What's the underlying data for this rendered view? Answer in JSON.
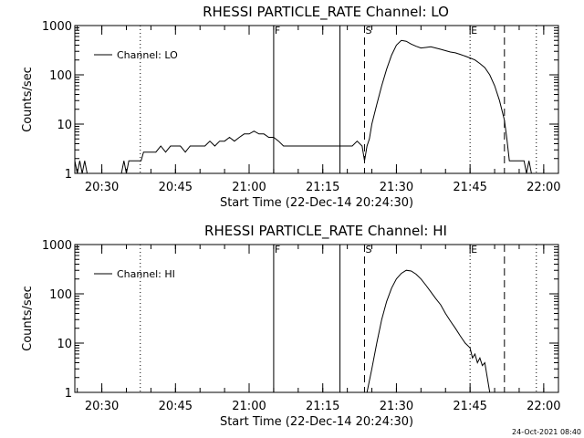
{
  "chart_data": [
    {
      "type": "line",
      "title": "RHESSI PARTICLE_RATE Channel: LO",
      "xlabel": "Start Time (22-Dec-14 20:24:30)",
      "ylabel": "Counts/sec",
      "yscale": "log",
      "ylim": [
        1,
        1000
      ],
      "xlim": [
        "20:24:30",
        "22:03:00"
      ],
      "x_ticks": [
        "20:30",
        "20:45",
        "21:00",
        "21:15",
        "21:30",
        "21:45",
        "22:00"
      ],
      "y_ticks": [
        "1",
        "10",
        "100",
        "1000"
      ],
      "legend": {
        "position": "top-left",
        "label": "Channel: LO"
      },
      "markers": [
        {
          "time": "20:37:50",
          "style": "dotted",
          "label": ""
        },
        {
          "time": "21:05:00",
          "style": "solid",
          "label": "F"
        },
        {
          "time": "21:18:30",
          "style": "solid",
          "label": ""
        },
        {
          "time": "21:23:30",
          "style": "dashed",
          "label": "S"
        },
        {
          "time": "21:45:00",
          "style": "dotted",
          "label": "E"
        },
        {
          "time": "21:52:00",
          "style": "dashed",
          "label": ""
        },
        {
          "time": "21:58:30",
          "style": "dotted",
          "label": ""
        }
      ],
      "series": [
        {
          "name": "Channel: LO",
          "x": [
            "20:24:30",
            "20:25:00",
            "20:25:30",
            "20:26:00",
            "20:26:30",
            "20:27:00",
            "20:27:30",
            "20:28:00",
            "20:28:30",
            "20:29:00",
            "20:29:30",
            "20:30:00",
            "20:31:00",
            "20:32:00",
            "20:33:00",
            "20:34:00",
            "20:34:30",
            "20:35:00",
            "20:35:30",
            "20:36:00",
            "20:36:30",
            "20:37:00",
            "20:37:30",
            "20:38:00",
            "20:38:30",
            "20:39:00",
            "20:40:00",
            "20:41:00",
            "20:42:00",
            "20:43:00",
            "20:44:00",
            "20:45:00",
            "20:46:00",
            "20:47:00",
            "20:48:00",
            "20:49:00",
            "20:50:00",
            "20:51:00",
            "20:52:00",
            "20:53:00",
            "20:54:00",
            "20:55:00",
            "20:56:00",
            "20:57:00",
            "20:58:00",
            "20:59:00",
            "21:00:00",
            "21:01:00",
            "21:02:00",
            "21:03:00",
            "21:04:00",
            "21:05:00",
            "21:06:00",
            "21:07:00",
            "21:08:00",
            "21:09:00",
            "21:10:00",
            "21:11:00",
            "21:12:00",
            "21:13:00",
            "21:14:00",
            "21:15:00",
            "21:16:00",
            "21:17:00",
            "21:18:00",
            "21:19:00",
            "21:20:00",
            "21:21:00",
            "21:22:00",
            "21:23:00",
            "21:23:30",
            "21:24:00",
            "21:24:30",
            "21:25:00",
            "21:26:00",
            "21:27:00",
            "21:28:00",
            "21:29:00",
            "21:30:00",
            "21:31:00",
            "21:32:00",
            "21:33:00",
            "21:34:00",
            "21:35:00",
            "21:36:00",
            "21:37:00",
            "21:38:00",
            "21:39:00",
            "21:40:00",
            "21:41:00",
            "21:42:00",
            "21:43:00",
            "21:44:00",
            "21:45:00",
            "21:46:00",
            "21:47:00",
            "21:48:00",
            "21:49:00",
            "21:50:00",
            "21:51:00",
            "21:52:00",
            "21:52:30",
            "21:53:00",
            "21:54:00",
            "21:55:00",
            "21:55:30",
            "21:56:00",
            "21:56:30",
            "21:57:00",
            "21:57:30"
          ],
          "y": [
            1.8,
            1.0,
            1.8,
            1.0,
            1.8,
            1.0,
            1.0,
            1.0,
            1.0,
            1.0,
            1.0,
            1.0,
            1.0,
            1.0,
            1.0,
            1.0,
            1.8,
            1.0,
            1.8,
            1.8,
            1.8,
            1.8,
            1.8,
            1.8,
            2.7,
            2.7,
            2.7,
            2.7,
            3.6,
            2.7,
            3.6,
            3.6,
            3.6,
            2.7,
            3.6,
            3.6,
            3.6,
            3.6,
            4.5,
            3.6,
            4.5,
            4.5,
            5.4,
            4.5,
            5.4,
            6.3,
            6.3,
            7.2,
            6.3,
            6.3,
            5.4,
            5.4,
            4.5,
            3.6,
            3.6,
            3.6,
            3.6,
            3.6,
            3.6,
            3.6,
            3.6,
            3.6,
            3.6,
            3.6,
            3.6,
            3.6,
            3.6,
            3.6,
            4.5,
            3.6,
            1.8,
            3.6,
            5.0,
            10,
            25,
            60,
            130,
            250,
            400,
            500,
            480,
            420,
            380,
            350,
            360,
            370,
            350,
            330,
            310,
            290,
            280,
            260,
            240,
            220,
            200,
            170,
            140,
            100,
            60,
            30,
            12,
            5.0,
            1.8,
            1.8,
            1.8,
            1.8,
            1.8,
            1.0,
            1.8,
            1.0
          ]
        }
      ]
    },
    {
      "type": "line",
      "title": "RHESSI PARTICLE_RATE Channel: HI",
      "xlabel": "Start Time (22-Dec-14 20:24:30)",
      "ylabel": "Counts/sec",
      "yscale": "log",
      "ylim": [
        1,
        1000
      ],
      "xlim": [
        "20:24:30",
        "22:03:00"
      ],
      "x_ticks": [
        "20:30",
        "20:45",
        "21:00",
        "21:15",
        "21:30",
        "21:45",
        "22:00"
      ],
      "y_ticks": [
        "1",
        "10",
        "100",
        "1000"
      ],
      "legend": {
        "position": "top-left",
        "label": "Channel: HI"
      },
      "markers": [
        {
          "time": "20:37:50",
          "style": "dotted",
          "label": ""
        },
        {
          "time": "21:05:00",
          "style": "solid",
          "label": "F"
        },
        {
          "time": "21:18:30",
          "style": "solid",
          "label": ""
        },
        {
          "time": "21:23:30",
          "style": "dashed",
          "label": "S"
        },
        {
          "time": "21:45:00",
          "style": "dotted",
          "label": "E"
        },
        {
          "time": "21:52:00",
          "style": "dashed",
          "label": ""
        },
        {
          "time": "21:58:30",
          "style": "dotted",
          "label": ""
        }
      ],
      "series": [
        {
          "name": "Channel: HI",
          "x": [
            "21:24:00",
            "21:25:00",
            "21:26:00",
            "21:27:00",
            "21:28:00",
            "21:29:00",
            "21:30:00",
            "21:31:00",
            "21:32:00",
            "21:33:00",
            "21:34:00",
            "21:35:00",
            "21:36:00",
            "21:37:00",
            "21:38:00",
            "21:39:00",
            "21:40:00",
            "21:41:00",
            "21:42:00",
            "21:43:00",
            "21:44:00",
            "21:45:00",
            "21:45:30",
            "21:46:00",
            "21:46:30",
            "21:47:00",
            "21:47:30",
            "21:48:00",
            "21:48:30",
            "21:49:00"
          ],
          "y": [
            1.0,
            3.0,
            10,
            30,
            70,
            130,
            200,
            260,
            300,
            290,
            250,
            200,
            150,
            110,
            80,
            60,
            40,
            28,
            20,
            14,
            10,
            8.0,
            5.0,
            6.0,
            4.0,
            5.0,
            3.5,
            4.0,
            2.0,
            1.0
          ]
        }
      ]
    }
  ],
  "footer": {
    "timestamp": "24-Oct-2021 08:40"
  }
}
